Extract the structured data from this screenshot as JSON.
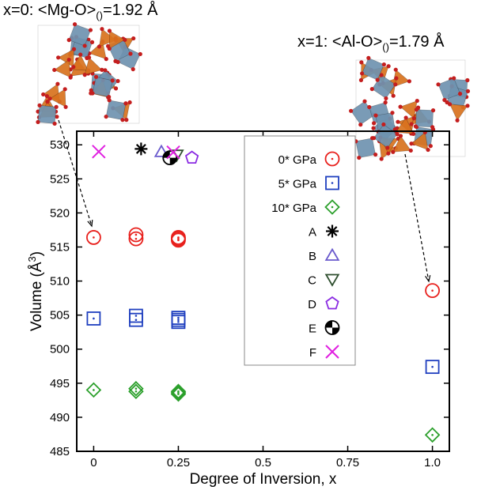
{
  "chart_data": {
    "type": "scatter",
    "xlabel": "Degree of Inversion, x",
    "ylabel": "Volume (Å",
    "ylabel_sup": "3",
    "ylabel_close": ")",
    "xlim": [
      -0.05,
      1.05
    ],
    "ylim": [
      485,
      532
    ],
    "xticks": [
      0,
      0.25,
      0.5,
      0.75,
      1.0
    ],
    "xtick_labels": [
      "0",
      "0.25",
      "0.5",
      "0.75",
      "1.0"
    ],
    "yticks": [
      485,
      490,
      495,
      500,
      505,
      510,
      515,
      520,
      525,
      530
    ],
    "ytick_labels": [
      "485",
      "490",
      "495",
      "500",
      "505",
      "510",
      "515",
      "520",
      "525",
      "530"
    ],
    "legend_position": "top-right",
    "series": [
      {
        "name": "0* GPa",
        "marker": "circle",
        "color": "#e8201c",
        "x": [
          0,
          0.125,
          0.125,
          0.25,
          0.25,
          0.25,
          1.0
        ],
        "y": [
          516.4,
          516.8,
          516.2,
          516.4,
          516.0,
          516.2,
          508.6
        ]
      },
      {
        "name": "5* GPa",
        "marker": "square",
        "color": "#1f3fbf",
        "x": [
          0,
          0.125,
          0.125,
          0.25,
          0.25,
          0.25,
          1.0
        ],
        "y": [
          504.5,
          504.9,
          504.3,
          504.6,
          504.0,
          504.3,
          497.4
        ]
      },
      {
        "name": "10* GPa",
        "marker": "diamond",
        "color": "#2ca02c",
        "x": [
          0,
          0.125,
          0.125,
          0.25,
          0.25,
          0.25,
          1.0
        ],
        "y": [
          494.0,
          494.2,
          493.8,
          493.8,
          493.4,
          493.6,
          487.4
        ]
      },
      {
        "name": "A",
        "marker": "star",
        "color": "#000000",
        "x": [
          0.14
        ],
        "y": [
          529.4
        ]
      },
      {
        "name": "B",
        "marker": "triangle",
        "color": "#6a5acd",
        "x": [
          0.2
        ],
        "y": [
          529.0
        ]
      },
      {
        "name": "C",
        "marker": "triangle-down",
        "color": "#2f4f2f",
        "x": [
          0.245
        ],
        "y": [
          528.5
        ]
      },
      {
        "name": "D",
        "marker": "pentagon",
        "color": "#8a2be2",
        "x": [
          0.29
        ],
        "y": [
          528.1
        ]
      },
      {
        "name": "E",
        "marker": "half-circle",
        "color": "#000000",
        "x": [
          0.225
        ],
        "y": [
          528.1
        ]
      },
      {
        "name": "F",
        "marker": "cross",
        "color": "#e020e0",
        "x": [
          0.015,
          0.235
        ],
        "y": [
          529.0,
          528.9
        ]
      }
    ]
  },
  "annotations": {
    "left_prefix": "x=0: <Mg-O>",
    "left_sub": "()",
    "left_value": "=1.92 Å",
    "right_prefix": "x=1: <Al-O>",
    "right_sub": "()",
    "right_value": "=1.79 Å"
  },
  "colors": {
    "tetrahedra": "#d9721e",
    "octahedra": "#6f93b0",
    "oxygen": "#c41e1e"
  }
}
